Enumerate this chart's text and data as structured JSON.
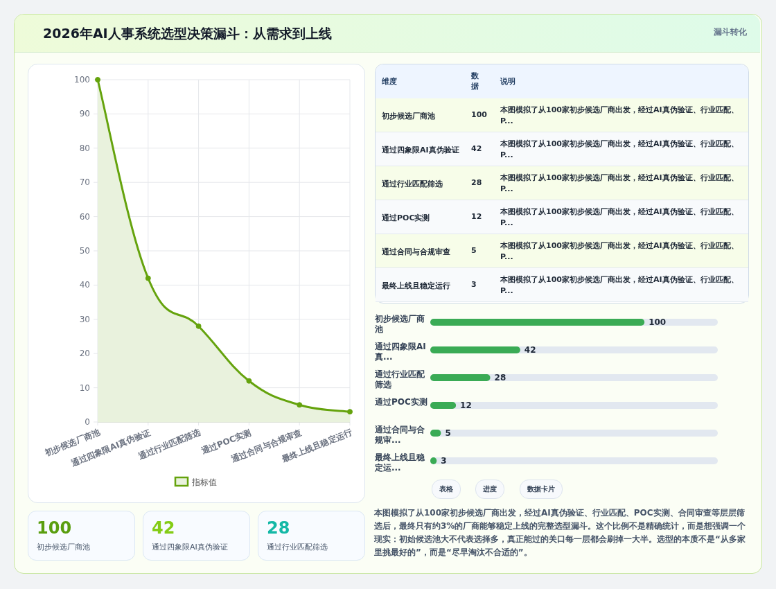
{
  "chart_data": [
    {
      "type": "area",
      "title": "2026年AI人事系统选型决策漏斗：从需求到上线",
      "annotations": [
        "漏斗转化"
      ],
      "categories": [
        "初步候选厂商池",
        "通过四象限AI真伪验证",
        "通过行业匹配筛选",
        "通过POC实测",
        "通过合同与合规审查",
        "最终上线且稳定运行"
      ],
      "series": [
        {
          "name": "指标值",
          "color": "#65a30d",
          "values": [
            100,
            42,
            28,
            12,
            5,
            3
          ]
        }
      ],
      "ylim": [
        0,
        100
      ],
      "yticks": [
        0,
        10,
        20,
        30,
        40,
        50,
        60,
        70,
        80,
        90,
        100
      ],
      "grid": true,
      "legend": "bottom",
      "marker": "circle"
    },
    {
      "type": "other",
      "categories": [
        "初步候选厂商池",
        "通过四象限AI真伪验证",
        "通过行业匹配筛选",
        "通过POC实测",
        "通过合同与合规审查",
        "最终上线且稳定运行"
      ],
      "values": [
        100,
        42,
        28,
        12,
        5,
        3
      ],
      "value_labels": [
        "100",
        "42",
        "28",
        "12",
        "5",
        "3"
      ],
      "annotations": [
        "维度",
        "数据",
        "说明",
        "本图模拟了从100家初步候选厂商出发，经过AI真伪验证、行业匹配、P...",
        "本图模拟了从100家初步候选厂商出发，经过AI真伪验证、行业匹配、P...",
        "本图模拟了从100家初步候选厂商出发，经过AI真伪验证、行业匹配、P...",
        "本图模拟了从100家初步候选厂商出发，经过AI真伪验证、行业匹配、P...",
        "本图模拟了从100家初步候选厂商出发，经过AI真伪验证、行业匹配、P...",
        "本图模拟了从100家初步候选厂商出发，经过AI真伪验证、行业匹配、P..."
      ]
    },
    {
      "type": "bar",
      "orientation": "horizontal",
      "categories": [
        "初步候选厂商池",
        "通过四象限AI真...",
        "通过行业匹配筛选",
        "通过POC实测",
        "通过合同与合规审...",
        "最终上线且稳定运..."
      ],
      "values": [
        100,
        42,
        28,
        12,
        5,
        3
      ],
      "color": "#3aab55",
      "data_labels": true
    },
    {
      "type": "other",
      "categories": [
        "初步候选厂商池",
        "通过四象限AI真伪验证",
        "通过行业匹配筛选"
      ],
      "values": [
        100,
        42,
        28
      ],
      "value_labels": [
        "100",
        "42",
        "28"
      ]
    },
    {
      "type": "other",
      "annotations": [
        "表格",
        "进度",
        "数据卡片",
        "本图模拟了从100家初步候选厂商出发，经过AI真伪验证、行业匹配、POC实测、合同审查等层层筛选后，最终只有约3%的厂商能够稳定上线的完整选型漏斗。这个比例不是精确统计，而是想强调一个现实：初始候选池大不代表选择多，真正能过的关口每一层都会刷掉一大半。选型的本质不是“从多家里挑最好的”，而是“尽早淘汰不合适的”。"
      ]
    }
  ]
}
